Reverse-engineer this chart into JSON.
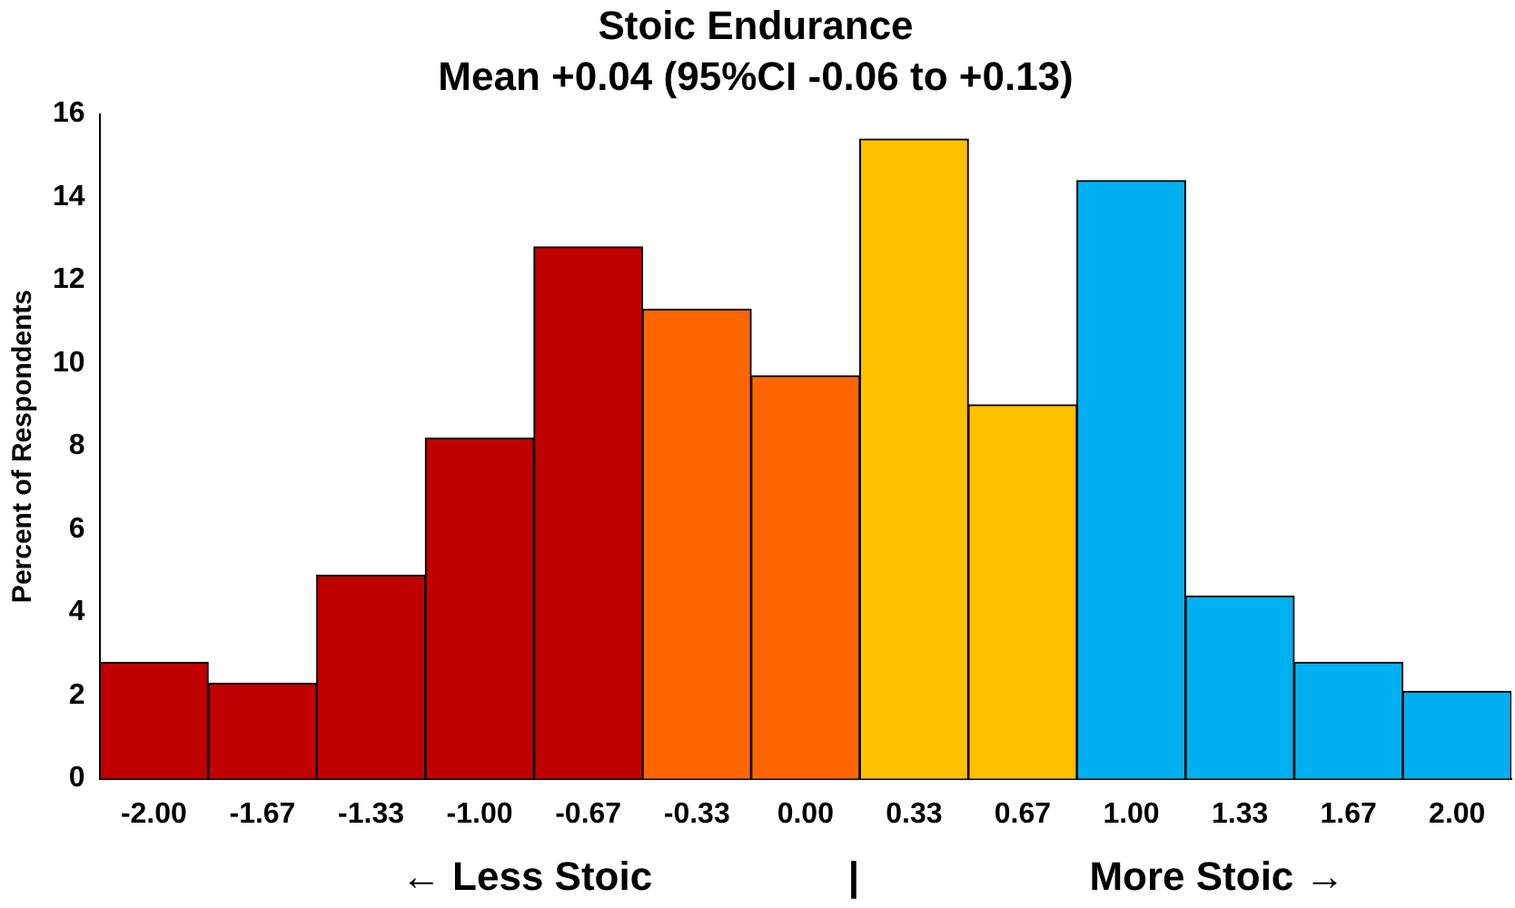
{
  "chart_data": {
    "type": "bar",
    "title": "Stoic Endurance",
    "subtitle": "Mean +0.04 (95%CI -0.06 to +0.13)",
    "ylabel": "Percent of Respondents",
    "categories": [
      "-2.00",
      "-1.67",
      "-1.33",
      "-1.00",
      "-0.67",
      "-0.33",
      "0.00",
      "0.33",
      "0.67",
      "1.00",
      "1.33",
      "1.67",
      "2.00"
    ],
    "values": [
      2.8,
      2.3,
      4.9,
      8.2,
      12.8,
      11.3,
      9.7,
      15.4,
      9.0,
      14.4,
      4.4,
      2.8,
      2.1
    ],
    "colors": [
      "#c00000",
      "#c00000",
      "#c00000",
      "#c00000",
      "#c00000",
      "#ff6600",
      "#ff6600",
      "#ffc000",
      "#ffc000",
      "#00b0f0",
      "#00b0f0",
      "#00b0f0",
      "#00b0f0"
    ],
    "ylim": [
      0,
      16
    ],
    "yticks": [
      0,
      2,
      4,
      6,
      8,
      10,
      12,
      14,
      16
    ],
    "grid": false,
    "legend": false,
    "annotations": [
      "← Less Stoic",
      "|",
      "More Stoic →"
    ]
  }
}
